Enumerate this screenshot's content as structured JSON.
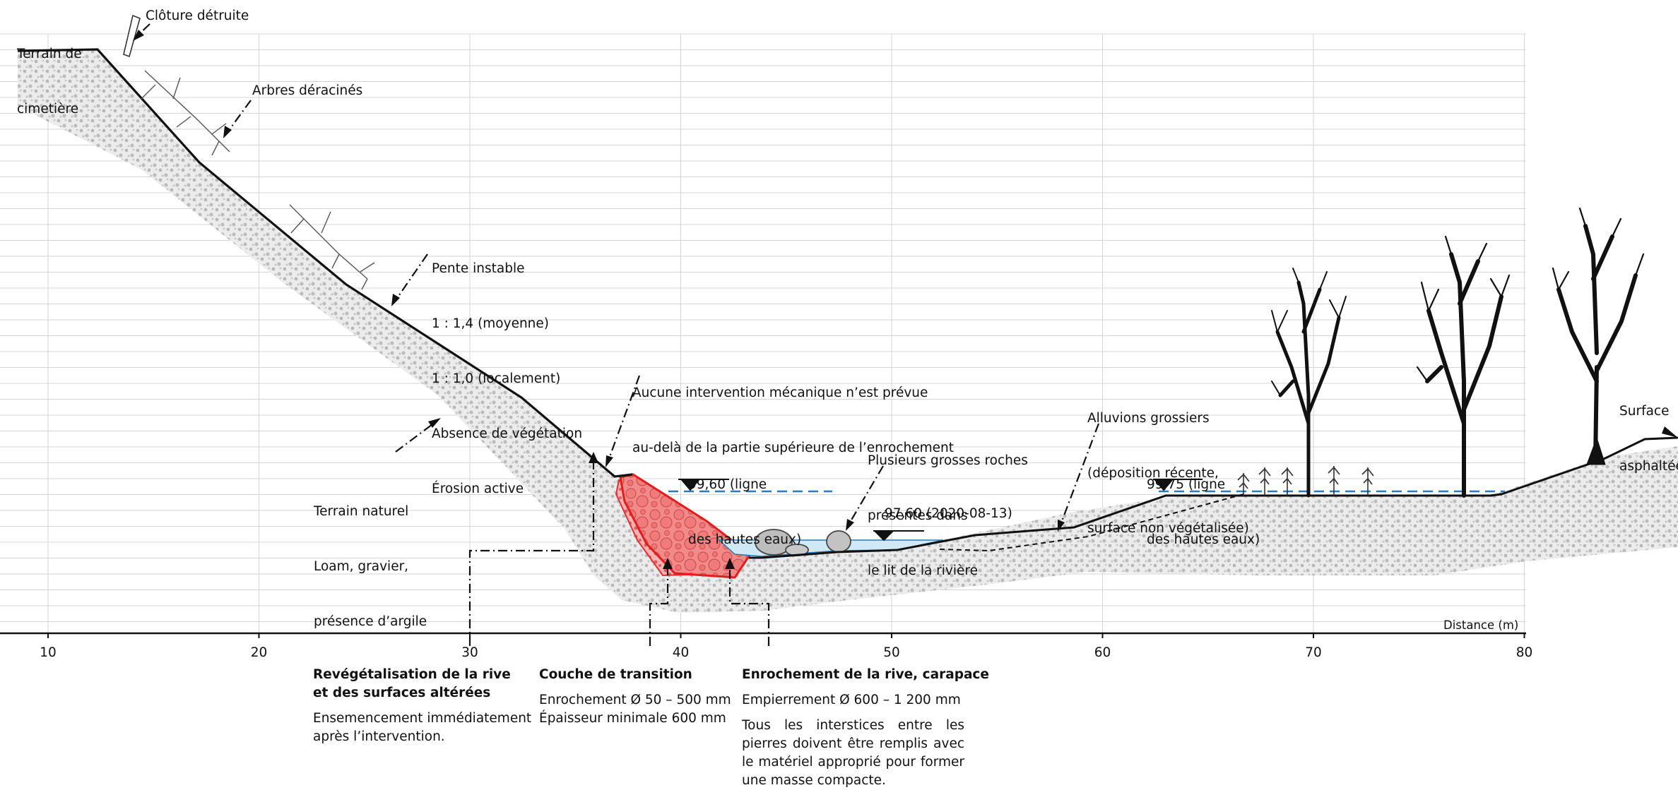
{
  "axis": {
    "name": "Distance (m)",
    "ticks": [
      "10",
      "20",
      "30",
      "40",
      "50",
      "60",
      "70",
      "80"
    ]
  },
  "labels": {
    "terrain_cimetiere": [
      "Terrain de",
      "cimetière"
    ],
    "cloture": "Clôture détruite",
    "arbres": "Arbres déracinés",
    "pente": [
      "Pente instable",
      "1 : 1,4 (moyenne)",
      "1 : 1,0 (localement)",
      "Absence de végétation",
      "Érosion active"
    ],
    "aucune": [
      "Aucune intervention mécanique n’est prévue",
      "au-delà de la partie supérieure de l’enrochement"
    ],
    "hautes_eaux_gauche": [
      "99,60 (ligne",
      "des hautes eaux)"
    ],
    "roches": [
      "Plusieurs grosses roches",
      "présentes dans",
      "le lit de la rivière"
    ],
    "niveau_eau": "97,60 (2020-08-13)",
    "alluvions": [
      "Alluvions grossiers",
      "(déposition récente,",
      "surface non végétalisée)"
    ],
    "hautes_eaux_droite": [
      "99,75 (ligne",
      "des hautes eaux)"
    ],
    "surface": [
      "Surface",
      "asphaltée"
    ],
    "terrain_naturel": [
      "Terrain naturel",
      "Loam, gravier,",
      "présence d’argile"
    ]
  },
  "legend": {
    "revegetalisation": {
      "title": [
        "Revégétalisation de la rive",
        "et des surfaces altérées"
      ],
      "body": [
        "Ensemencement immédiatement",
        "après l’intervention."
      ]
    },
    "transition": {
      "title": "Couche de transition",
      "body": [
        "Enrochement Ø 50 – 500 mm",
        "Épaisseur minimale 600 mm"
      ]
    },
    "enrochement": {
      "title": "Enrochement de la rive, carapace",
      "line": "Empierrement Ø 600 – 1 200 mm",
      "body": "Tous les interstices entre les pierres doivent être remplis avec le matériel approprié pour former une masse compacte."
    }
  },
  "colors": {
    "grid": "#d4d4d4",
    "soil": "#e9e9e9",
    "soil_dots": "#b9b9b9",
    "riprap": "#ee3a3a",
    "riprap_fill": "#f58f8f",
    "water": "#cfeaf6",
    "water_line": "#2a7bb8",
    "terrain": "#111111"
  }
}
